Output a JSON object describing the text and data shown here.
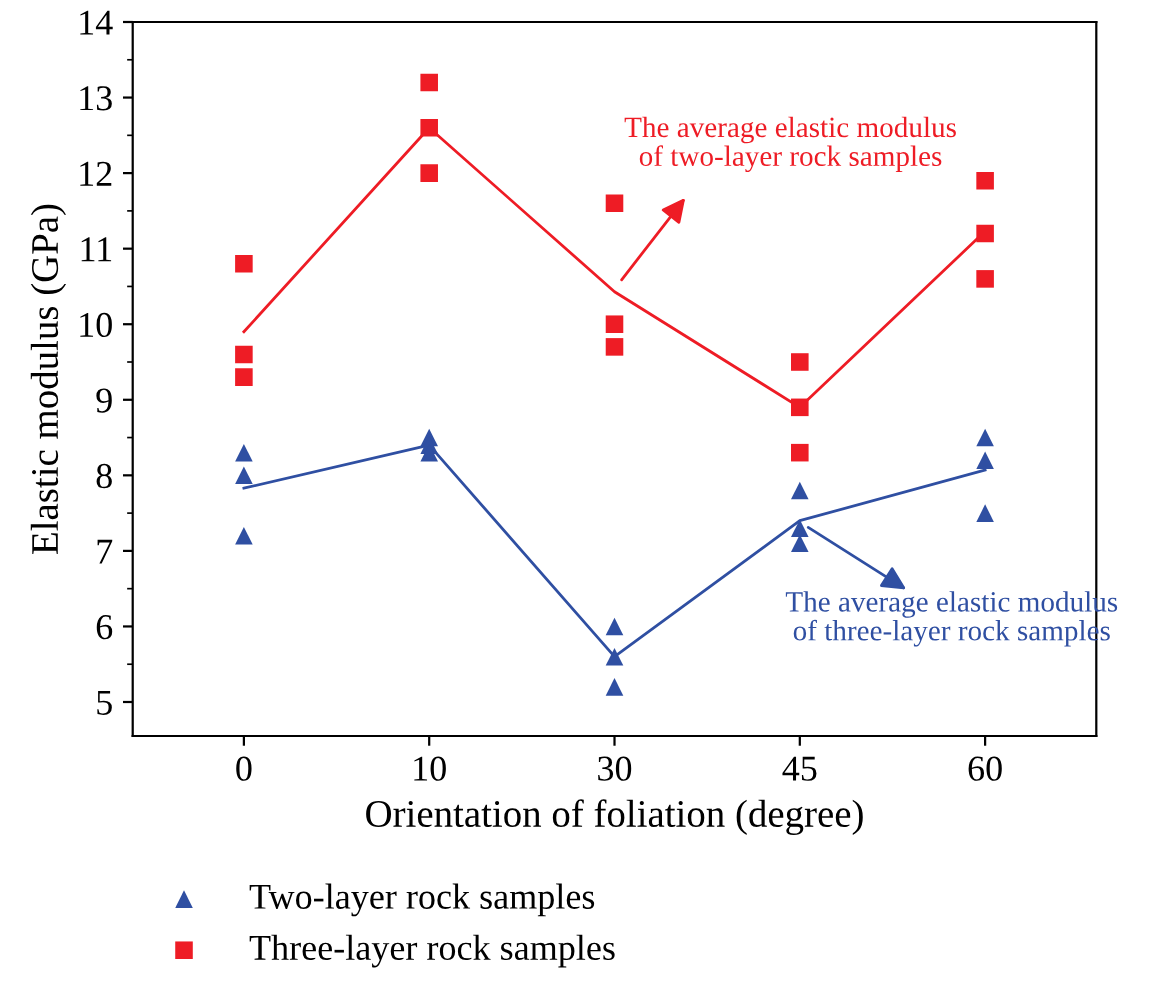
{
  "chart_data": {
    "type": "scatter",
    "xlabel": "Orientation of foliation (degree)",
    "ylabel": "Elastic modulus (GPa)",
    "categories": [
      "0",
      "10",
      "30",
      "45",
      "60"
    ],
    "ylim": [
      4.55,
      14
    ],
    "yticks": [
      5,
      6,
      7,
      8,
      9,
      10,
      11,
      12,
      13,
      14
    ],
    "grid": false,
    "legend": "bottom",
    "series": [
      {
        "name": "Two-layer rock samples",
        "marker": "triangle",
        "color": "#2f4fa2",
        "x": [
          "0",
          "0",
          "0",
          "10",
          "10",
          "10",
          "30",
          "30",
          "30",
          "45",
          "45",
          "45",
          "60",
          "60",
          "60"
        ],
        "values": [
          8.3,
          8.0,
          7.2,
          8.5,
          8.4,
          8.3,
          6.0,
          5.6,
          5.2,
          7.8,
          7.3,
          7.1,
          8.5,
          8.2,
          7.5
        ]
      },
      {
        "name": "Three-layer rock samples",
        "marker": "square",
        "color": "#ee1c25",
        "x": [
          "0",
          "0",
          "0",
          "10",
          "10",
          "10",
          "30",
          "30",
          "30",
          "45",
          "45",
          "45",
          "60",
          "60",
          "60"
        ],
        "values": [
          10.8,
          9.6,
          9.3,
          13.2,
          12.6,
          12.0,
          11.6,
          10.0,
          9.7,
          9.5,
          8.9,
          8.3,
          11.9,
          11.2,
          10.6
        ]
      },
      {
        "type": "line",
        "marker": "none",
        "color": "#ee1c25",
        "values": [
          9.9,
          12.6,
          10.43,
          8.9,
          11.23
        ]
      },
      {
        "type": "line",
        "marker": "none",
        "color": "#2f4fa2",
        "values": [
          7.83,
          8.4,
          5.6,
          7.4,
          8.07
        ]
      }
    ],
    "annotations": [
      {
        "text": "The average elastic modulus\nof two-layer rock samples",
        "x": "30",
        "y": 10.43
      },
      {
        "text": "The average elastic modulus\nof three-layer rock samples",
        "x": "45",
        "y": 7.4
      }
    ]
  }
}
